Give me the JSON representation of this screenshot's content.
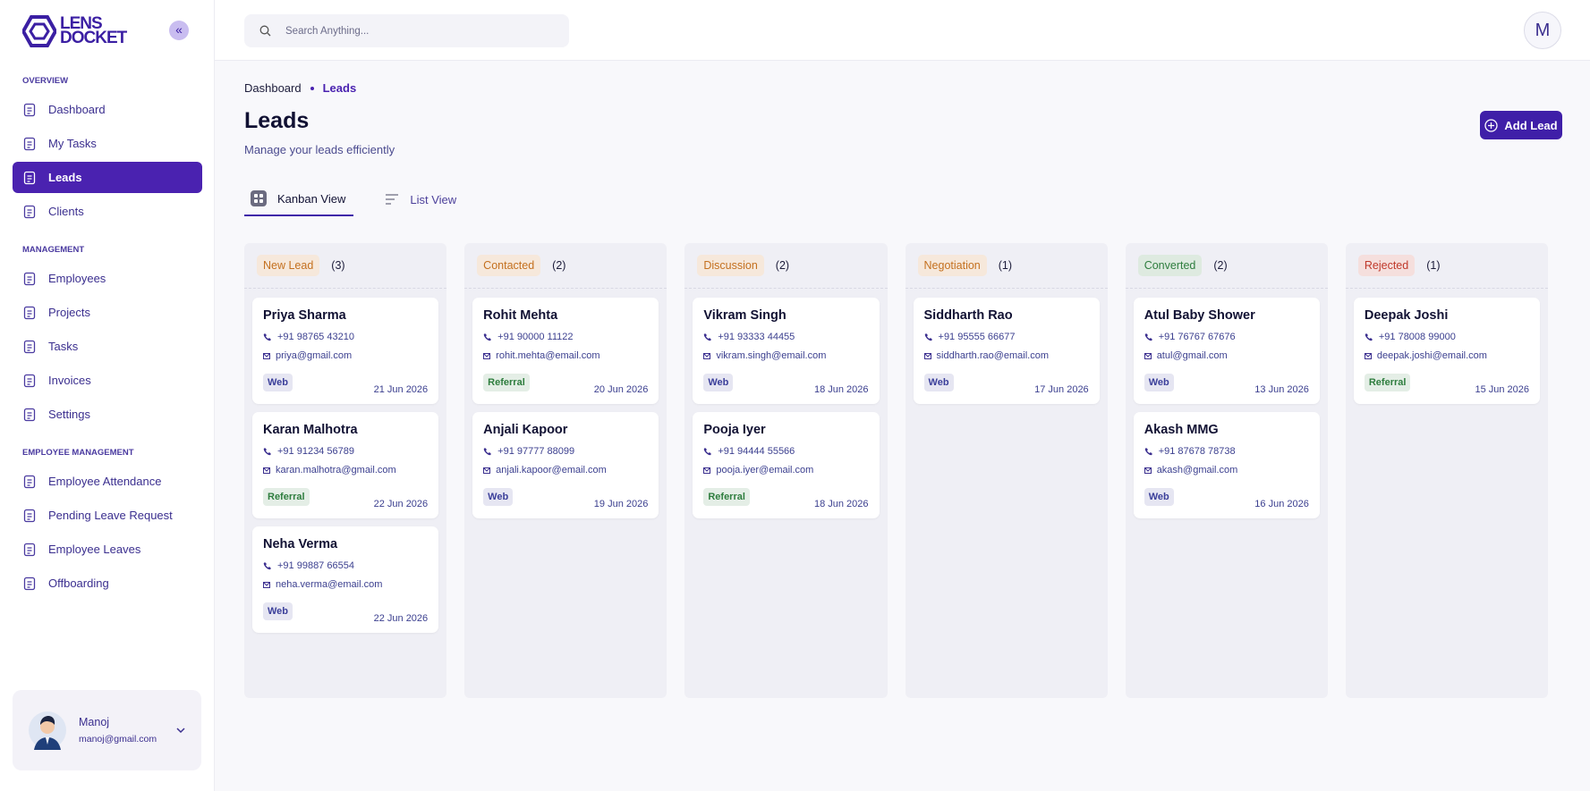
{
  "brand": {
    "line1": "LENS",
    "line2": "DOCKET"
  },
  "sidebar": {
    "sections": [
      {
        "title": "OVERVIEW",
        "items": [
          {
            "label": "Dashboard"
          },
          {
            "label": "My Tasks"
          },
          {
            "label": "Leads",
            "active": true
          },
          {
            "label": "Clients"
          }
        ]
      },
      {
        "title": "MANAGEMENT",
        "items": [
          {
            "label": "Employees"
          },
          {
            "label": "Projects"
          },
          {
            "label": "Tasks"
          },
          {
            "label": "Invoices"
          },
          {
            "label": "Settings"
          }
        ]
      },
      {
        "title": "EMPLOYEE MANAGEMENT",
        "items": [
          {
            "label": "Employee Attendance"
          },
          {
            "label": "Pending Leave Request"
          },
          {
            "label": "Employee Leaves"
          },
          {
            "label": "Offboarding"
          }
        ]
      }
    ]
  },
  "user": {
    "name": "Manoj",
    "email": "manoj@gmail.com"
  },
  "search_placeholder": "Search Anything...",
  "avatar": "M",
  "breadcrumb": [
    "Dashboard",
    "Leads"
  ],
  "page": {
    "title": "Leads",
    "subtitle": "Manage your leads efficiently",
    "button": "Add Lead"
  },
  "tabs": [
    {
      "label": "Kanban View",
      "active": true
    },
    {
      "label": "List View"
    }
  ],
  "columns": [
    {
      "title": "New Lead",
      "count": "(3)",
      "color": "#c4701f",
      "cards": [
        {
          "name": "Priya Sharma",
          "phone": "+91 98765 43210",
          "email": "priya@gmail.com",
          "source": "Web",
          "source_color": "#3b3f9a",
          "date": "21 Jun 2026"
        },
        {
          "name": "Karan Malhotra",
          "phone": "+91 91234 56789",
          "email": "karan.malhotra@gmail.com",
          "source": "Referral",
          "source_color": "#2e7d3e",
          "date": "22 Jun 2026"
        },
        {
          "name": "Neha Verma",
          "phone": "+91 99887 66554",
          "email": "neha.verma@email.com",
          "source": "Web",
          "source_color": "#3b3f9a",
          "date": "22 Jun 2026"
        }
      ]
    },
    {
      "title": "Contacted",
      "count": "(2)",
      "color": "#c4701f",
      "cards": [
        {
          "name": "Rohit Mehta",
          "phone": "+91 90000 11122",
          "email": "rohit.mehta@email.com",
          "source": "Referral",
          "source_color": "#2e7d3e",
          "date": "20 Jun 2026"
        },
        {
          "name": "Anjali Kapoor",
          "phone": "+91 97777 88099",
          "email": "anjali.kapoor@email.com",
          "source": "Web",
          "source_color": "#3b3f9a",
          "date": "19 Jun 2026"
        }
      ]
    },
    {
      "title": "Discussion",
      "count": "(2)",
      "color": "#c4701f",
      "cards": [
        {
          "name": "Vikram Singh",
          "phone": "+91 93333 44455",
          "email": "vikram.singh@email.com",
          "source": "Web",
          "source_color": "#3b3f9a",
          "date": "18 Jun 2026"
        },
        {
          "name": "Pooja Iyer",
          "phone": "+91 94444 55566",
          "email": "pooja.iyer@email.com",
          "source": "Referral",
          "source_color": "#2e7d3e",
          "date": "18 Jun 2026"
        }
      ]
    },
    {
      "title": "Negotiation",
      "count": "(1)",
      "color": "#c4701f",
      "cards": [
        {
          "name": "Siddharth Rao",
          "phone": "+91 95555 66677",
          "email": "siddharth.rao@email.com",
          "source": "Web",
          "source_color": "#3b3f9a",
          "date": "17 Jun 2026"
        }
      ]
    },
    {
      "title": "Converted",
      "count": "(2)",
      "color": "#2e7d3e",
      "cards": [
        {
          "name": "Atul Baby Shower",
          "phone": "+91 76767 67676",
          "email": "atul@gmail.com",
          "source": "Web",
          "source_color": "#3b3f9a",
          "date": "13 Jun 2026"
        },
        {
          "name": "Akash MMG",
          "phone": "+91 87678 78738",
          "email": "akash@gmail.com",
          "source": "Web",
          "source_color": "#3b3f9a",
          "date": "16 Jun 2026"
        }
      ]
    },
    {
      "title": "Rejected",
      "count": "(1)",
      "color": "#c0392b",
      "cards": [
        {
          "name": "Deepak Joshi",
          "phone": "+91 78008 99000",
          "email": "deepak.joshi@email.com",
          "source": "Referral",
          "source_color": "#2e7d3e",
          "date": "15 Jun 2026"
        }
      ]
    }
  ]
}
